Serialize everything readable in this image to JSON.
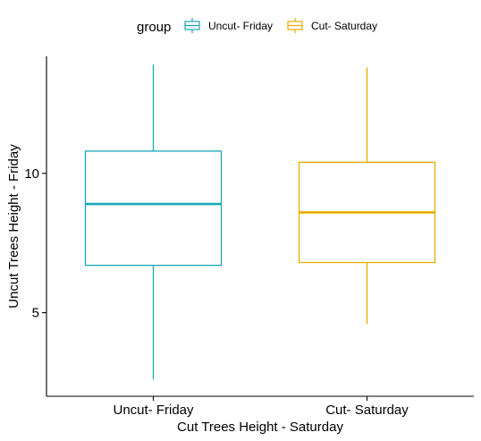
{
  "chart_data": {
    "type": "box",
    "xlabel": "Cut Trees Height - Saturday",
    "ylabel": "Uncut Trees Height - Friday",
    "ylim": [
      2.0,
      14.2
    ],
    "yticks": [
      5,
      10
    ],
    "grid": false,
    "legend": {
      "title": "group",
      "position": "top",
      "entries": [
        "Uncut- Friday",
        "Cut- Saturday"
      ]
    },
    "categories": [
      "Uncut- Friday",
      "Cut- Saturday"
    ],
    "series": [
      {
        "name": "Uncut- Friday",
        "color": "#1aa6b7",
        "min": 2.6,
        "q1": 6.7,
        "median": 8.9,
        "q3": 10.8,
        "max": 13.9
      },
      {
        "name": "Cut- Saturday",
        "color": "#e6ac00",
        "min": 4.6,
        "q1": 6.8,
        "median": 8.6,
        "q3": 10.4,
        "max": 13.8
      }
    ]
  }
}
